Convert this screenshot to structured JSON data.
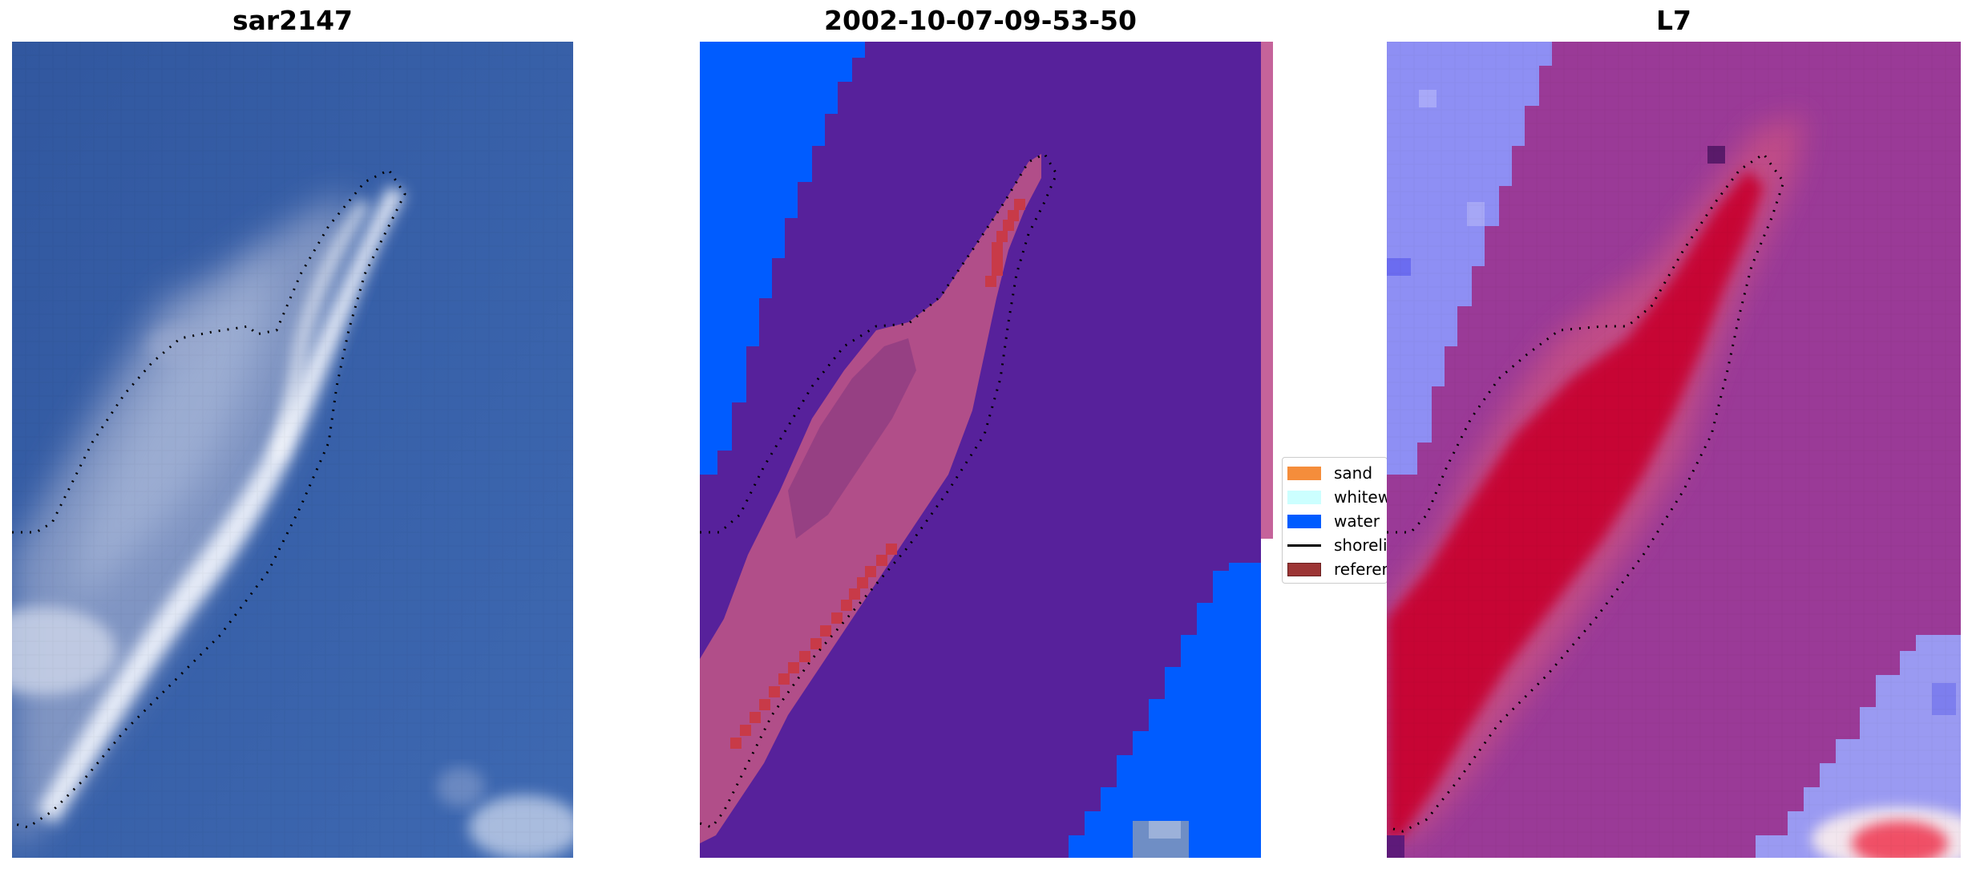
{
  "panels": {
    "rgb": {
      "title": "sar2147"
    },
    "classified": {
      "title": "2002-10-07-09-53-50"
    },
    "index": {
      "title": "L7"
    }
  },
  "legend": {
    "items": [
      {
        "label": "sand",
        "color": "#f58d3b",
        "kind": "patch"
      },
      {
        "label": "whitewater",
        "color": "#ccffff",
        "kind": "patch"
      },
      {
        "label": "water",
        "color": "#005cff",
        "kind": "patch"
      },
      {
        "label": "shoreline",
        "color": "#000000",
        "kind": "line"
      },
      {
        "label": "reference shoreline",
        "color": "#9c3535",
        "kind": "patch"
      }
    ]
  },
  "colors": {
    "ocean_blue": "#3a62ad",
    "class_water": "#005cff",
    "class_other": "#57219b",
    "class_sand_overlay": "#b85288",
    "index_purple": "#9a3a97",
    "index_light": "#8e8ff4",
    "index_red": "#c8002e",
    "shoreline": "#000000"
  }
}
